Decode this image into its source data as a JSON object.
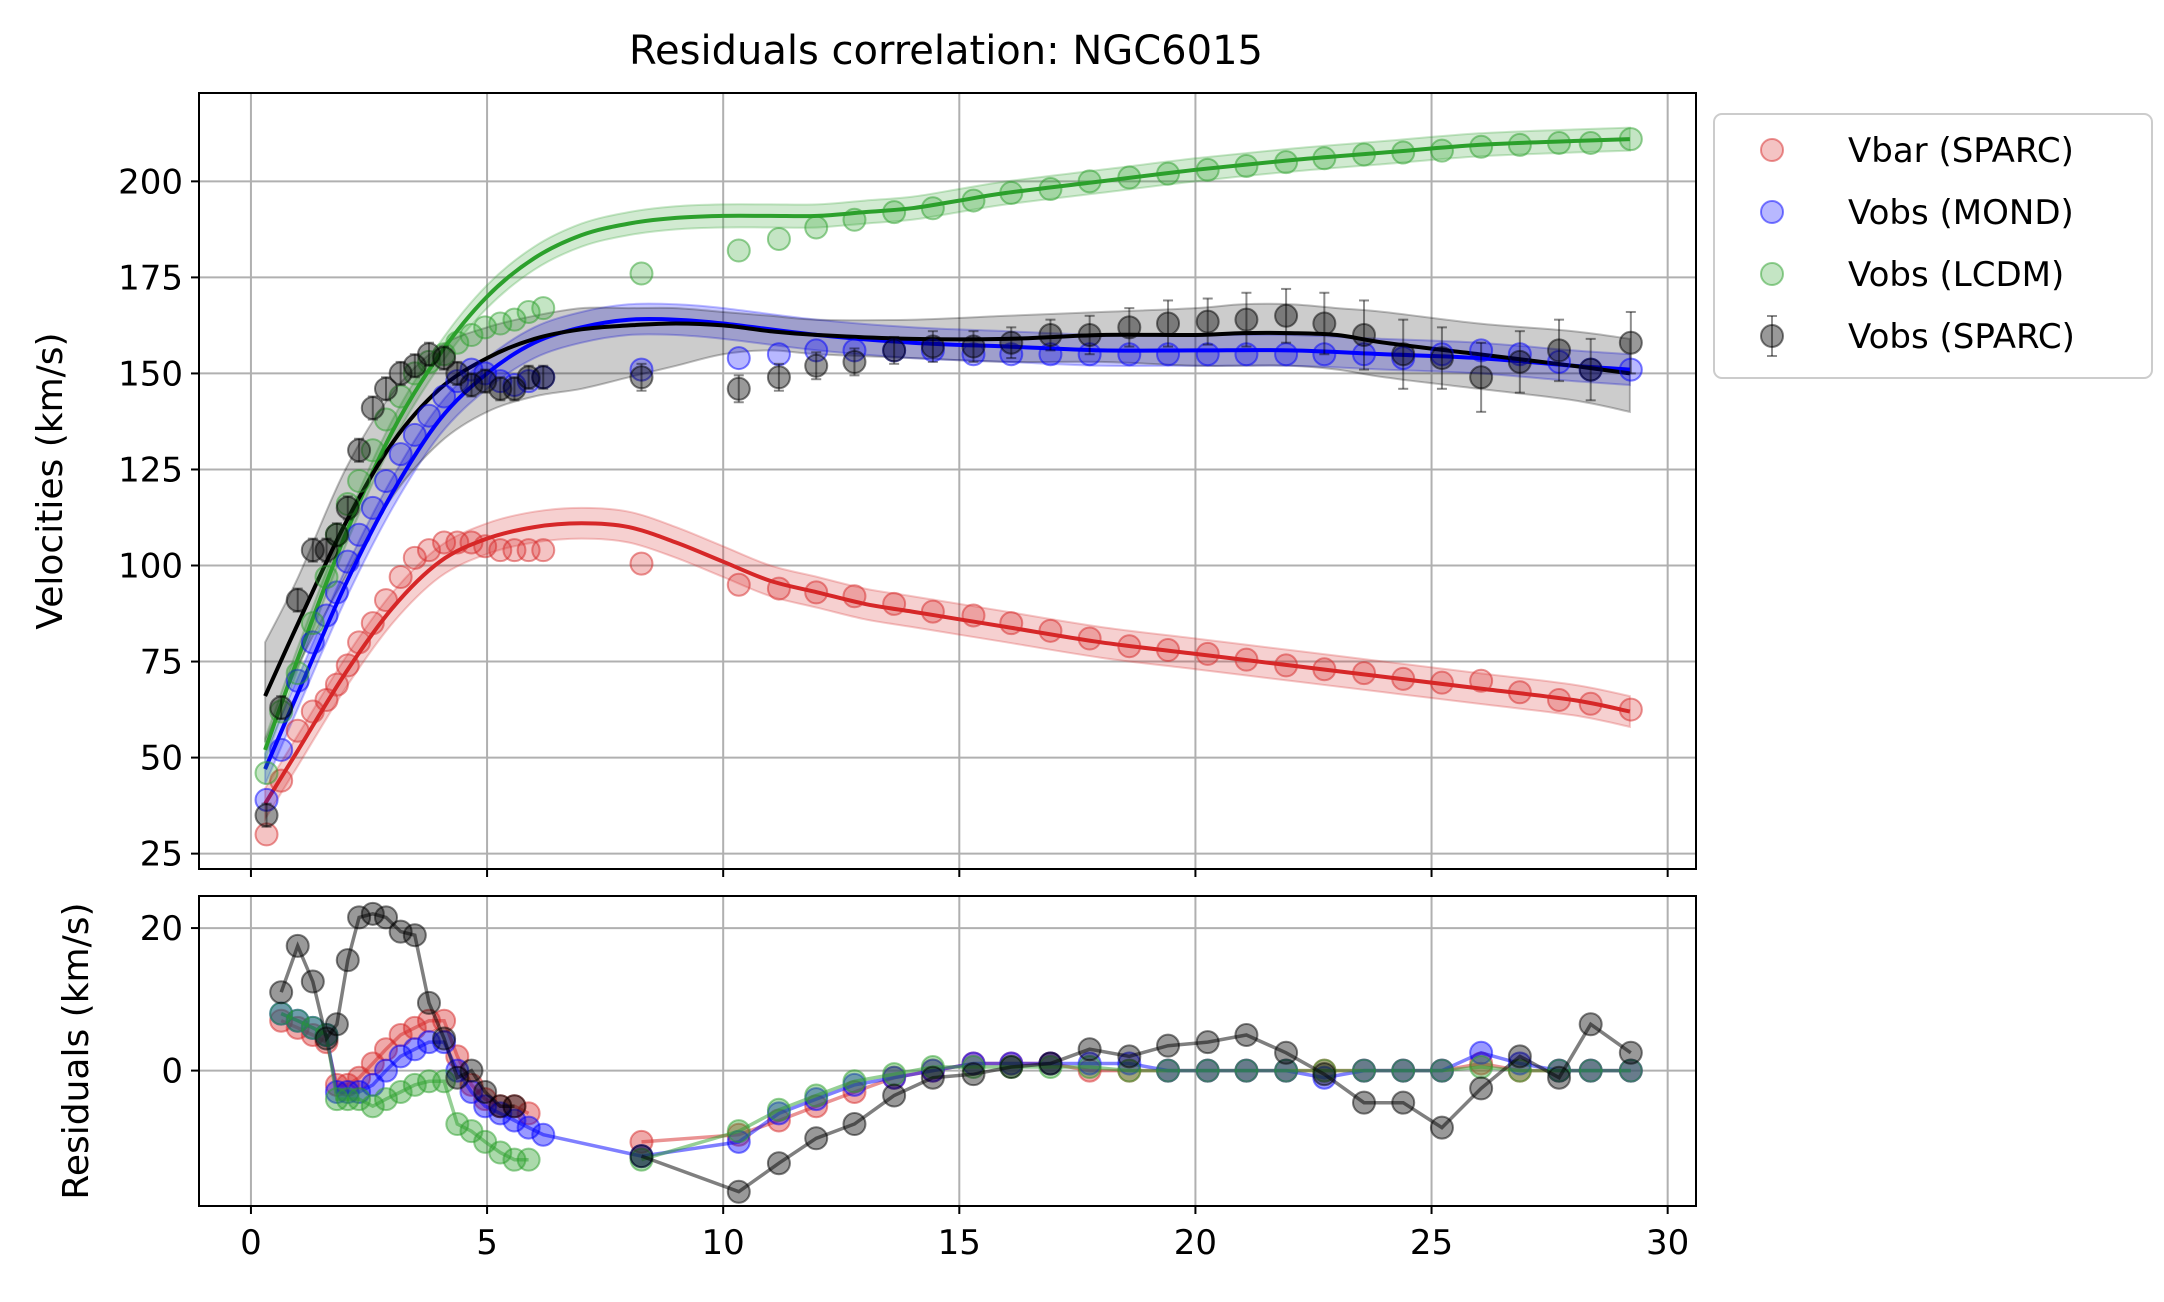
{
  "chart_data": [
    {
      "type": "scatter",
      "title": "Residuals correlation: NGC6015",
      "xlabel": "",
      "ylabel": "Velocities (km/s)",
      "xlim": [
        -1.1,
        30.6
      ],
      "ylim": [
        21,
        223
      ],
      "x_ticks": [
        0,
        5,
        10,
        15,
        20,
        25,
        30
      ],
      "y_ticks": [
        25,
        50,
        75,
        100,
        125,
        150,
        175,
        200
      ],
      "grid": true,
      "legend": {
        "position": "outside-right-top",
        "entries": [
          "Vbar (SPARC)",
          "Vobs (MOND)",
          "Vobs (LCDM)",
          "Vobs (SPARC)"
        ]
      },
      "colors": {
        "Vbar (SPARC)": "#d62728",
        "Vobs (MOND)": "#0000ff",
        "Vobs (LCDM)": "#2ca02c",
        "Vobs (SPARC)": "#000000"
      },
      "radii": [
        0.33,
        0.64,
        0.99,
        1.31,
        1.6,
        1.82,
        2.05,
        2.29,
        2.58,
        2.86,
        3.17,
        3.47,
        3.77,
        4.09,
        4.37,
        4.67,
        4.96,
        5.28,
        5.58,
        5.88,
        6.19,
        8.27,
        10.33,
        11.18,
        11.97,
        12.78,
        13.62,
        14.44,
        15.3,
        16.1,
        16.93,
        17.76,
        18.6,
        19.42,
        20.26,
        21.08,
        21.92,
        22.73,
        23.57,
        24.4,
        25.22,
        26.05,
        26.87,
        27.7,
        28.37,
        29.22
      ],
      "series": [
        {
          "name": "Vbar (SPARC)",
          "values": [
            30,
            44,
            57,
            62,
            65,
            69,
            74,
            80,
            85,
            91,
            97,
            102,
            104,
            106,
            106,
            106,
            105,
            104,
            104,
            104,
            104,
            100.5,
            95,
            94,
            93,
            92,
            90,
            88,
            87,
            85,
            83,
            81,
            79,
            78,
            77,
            75.5,
            74,
            73,
            72,
            70.5,
            69.5,
            70,
            67,
            65,
            64,
            62.5
          ]
        },
        {
          "name": "Vobs (MOND)",
          "values": [
            39,
            52,
            70,
            80,
            87,
            93,
            101,
            108,
            115,
            122,
            129,
            134,
            139,
            144,
            148,
            151,
            150,
            148,
            147,
            148,
            149,
            151,
            154,
            155,
            156,
            156,
            156,
            156,
            155,
            155,
            155,
            155,
            155,
            155,
            155,
            155,
            155,
            155,
            155,
            154,
            155,
            156,
            155,
            153,
            151,
            151
          ]
        },
        {
          "name": "Vobs (LCDM)",
          "values": [
            46,
            62,
            72,
            85,
            97,
            108,
            116,
            122,
            130,
            138,
            144,
            150,
            153,
            155,
            158,
            160,
            162,
            163,
            164,
            166,
            167,
            176,
            182,
            185,
            188,
            190,
            192,
            193,
            195,
            197,
            198,
            200,
            201,
            202,
            203,
            204,
            205,
            206,
            207,
            207.5,
            208,
            209,
            209.5,
            210,
            210,
            211
          ]
        },
        {
          "name": "Vobs (SPARC)",
          "values": [
            35,
            63,
            91,
            104,
            104,
            108,
            115,
            130,
            141,
            146,
            150,
            152,
            155,
            154,
            150,
            147,
            148,
            146,
            146,
            149,
            149,
            149,
            146,
            149,
            152,
            153,
            156,
            157,
            157,
            158,
            160,
            160,
            162,
            163,
            163.5,
            164,
            165,
            163,
            160,
            155,
            154,
            149,
            153,
            156,
            151,
            158
          ],
          "errors": [
            3,
            3,
            3,
            3,
            3,
            3,
            3,
            3,
            3,
            3,
            3,
            3,
            3,
            3,
            3,
            3,
            3,
            3,
            3,
            3,
            3,
            3.5,
            3.5,
            3.5,
            3.5,
            3.5,
            3.5,
            4,
            4,
            4,
            4,
            5,
            5,
            6,
            6,
            7,
            7,
            8,
            9,
            9,
            8,
            9,
            8,
            8,
            8,
            8
          ]
        }
      ],
      "fit_curves": [
        {
          "name": "Vbar (SPARC)",
          "x": [
            0.3,
            1,
            2,
            3,
            4,
            5,
            6,
            7,
            8,
            9,
            10,
            11,
            12,
            13,
            14,
            15,
            16,
            18,
            20,
            22,
            24,
            26,
            28,
            29.2
          ],
          "y": [
            38,
            52,
            72,
            89,
            101,
            107,
            110,
            111,
            110,
            106,
            101,
            96,
            93,
            90,
            88,
            86,
            84,
            80,
            77,
            74,
            71,
            68,
            65,
            62
          ],
          "band": 4
        },
        {
          "name": "Vobs (MOND)",
          "x": [
            0.3,
            1,
            2,
            3,
            4,
            5,
            6,
            7,
            8,
            9,
            10,
            12,
            14,
            16,
            18,
            20,
            22,
            24,
            26,
            28,
            29.2
          ],
          "y": [
            47,
            67,
            95,
            119,
            138,
            150,
            158,
            162,
            164,
            164,
            163,
            160,
            158,
            157,
            156,
            156,
            156,
            155,
            154,
            152,
            151
          ],
          "band": 4
        },
        {
          "name": "Vobs (LCDM)",
          "x": [
            0.3,
            1,
            2,
            3,
            4,
            5,
            6,
            7,
            8,
            9,
            10,
            11,
            12,
            13,
            14,
            15,
            16,
            18,
            20,
            22,
            24,
            26,
            28,
            29.2
          ],
          "y": [
            52,
            76,
            108,
            135,
            155,
            170,
            180,
            186,
            189,
            190.5,
            191,
            191,
            191,
            192,
            193,
            195,
            197,
            200,
            203,
            205.5,
            207.5,
            209.5,
            210.5,
            211
          ],
          "band": 3
        },
        {
          "name": "Vobs (SPARC)",
          "x": [
            0.3,
            1,
            2,
            3,
            4,
            5,
            6,
            7,
            8,
            9,
            10,
            11,
            12,
            14,
            16,
            18,
            20,
            21,
            22,
            23,
            24,
            26,
            28,
            29.2
          ],
          "y": [
            66,
            85,
            111,
            132,
            146,
            154,
            159,
            161.5,
            162.5,
            163,
            162.5,
            161,
            160,
            159,
            159,
            160,
            160,
            160.5,
            160.5,
            160,
            158,
            155,
            152,
            150
          ],
          "band_upper": [
            80,
            97,
            125,
            145,
            157,
            162,
            165,
            167,
            167,
            167,
            166,
            165,
            164,
            164,
            165,
            166,
            167,
            168,
            168,
            167,
            166,
            163,
            161,
            159
          ],
          "band_lower": [
            54,
            74,
            97,
            118,
            132,
            140,
            144,
            146,
            149,
            152,
            155,
            156,
            155,
            154,
            153,
            153,
            152,
            152,
            152,
            151,
            149,
            146,
            143,
            140
          ]
        }
      ]
    },
    {
      "type": "line",
      "xlabel": "",
      "ylabel": "Residuals (km/s)",
      "xlim": [
        -1.1,
        30.6
      ],
      "ylim": [
        -19,
        24.5
      ],
      "x_ticks": [
        0,
        5,
        10,
        15,
        20,
        25,
        30
      ],
      "y_ticks": [
        0,
        20
      ],
      "grid": true,
      "series": [
        {
          "name": "Vbar (SPARC)",
          "color": "#d62728",
          "values": [
            null,
            7,
            6,
            5,
            4,
            -2,
            -2,
            -1,
            1,
            3,
            5,
            6,
            7,
            7,
            2,
            -2,
            -4,
            -5,
            -5,
            -6,
            null,
            -10,
            -9,
            -7,
            -5,
            -3,
            -1,
            0,
            1,
            1,
            1,
            0,
            0,
            0,
            0,
            0,
            0,
            0,
            0,
            0,
            0,
            1,
            0,
            0,
            0,
            0
          ]
        },
        {
          "name": "Vobs (MOND)",
          "color": "#0000ff",
          "values": [
            null,
            8,
            7,
            6,
            5,
            -3,
            -3,
            -3,
            -2,
            0,
            2,
            3,
            4,
            4,
            0,
            -3,
            -5,
            -6,
            -7,
            -8,
            -9,
            -12,
            -10,
            -6,
            -4,
            -2,
            -1,
            0,
            1,
            1,
            1,
            1,
            1,
            0,
            0,
            0,
            0,
            -1,
            0,
            0,
            0,
            2.5,
            1,
            0,
            0,
            0
          ]
        },
        {
          "name": "Vobs (LCDM)",
          "color": "#2ca02c",
          "values": [
            null,
            8,
            7,
            6,
            5,
            -4,
            -4,
            -4,
            -5,
            -4,
            -3,
            -2,
            -1.5,
            -1.5,
            -7.5,
            -8.5,
            -10,
            -11.5,
            -12.5,
            -12.5,
            null,
            -12.5,
            -8.5,
            -5.5,
            -3.5,
            -1.5,
            -0.5,
            0.5,
            0.5,
            0.5,
            0.5,
            0.5,
            0,
            0,
            0,
            0,
            0,
            0,
            0,
            0,
            0,
            0.5,
            0,
            0,
            0,
            0
          ]
        },
        {
          "name": "Vobs (SPARC)",
          "color": "#000000",
          "values": [
            null,
            11,
            17.5,
            12.5,
            4.5,
            6.5,
            15.5,
            21.5,
            22,
            21.5,
            19.5,
            19,
            9.5,
            4.5,
            -1,
            0,
            -3,
            -5,
            -5,
            null,
            null,
            -12,
            -17,
            -13,
            -9.5,
            -7.5,
            -3.5,
            -1,
            -0.5,
            0.5,
            1,
            3,
            2,
            3.5,
            4,
            5,
            2.5,
            -0.5,
            -4.5,
            -4.5,
            -8,
            -2.5,
            2,
            -1,
            6.5,
            2.5
          ]
        }
      ]
    }
  ]
}
